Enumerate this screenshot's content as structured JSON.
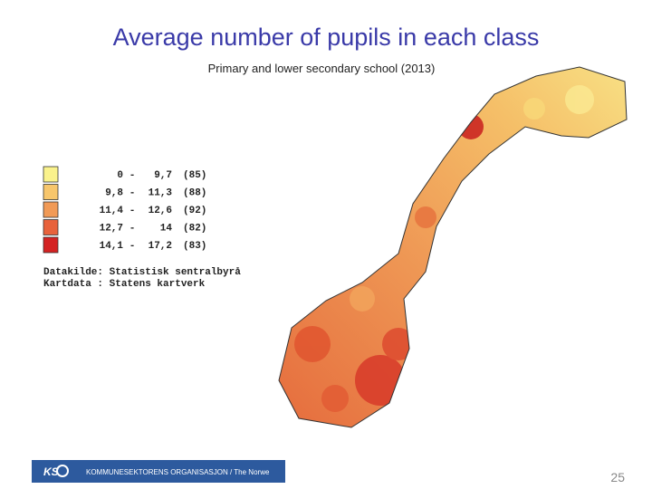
{
  "header": {
    "title": "Average number of pupils in each class",
    "subtitle": "Primary and lower secondary school (2013)"
  },
  "legend": {
    "items": [
      {
        "from": "0",
        "to": "9,7",
        "count": "(85)",
        "color": "#faf28c"
      },
      {
        "from": "9,8",
        "to": "11,3",
        "count": "(88)",
        "color": "#f7c66c"
      },
      {
        "from": "11,4",
        "to": "12,6",
        "count": "(92)",
        "color": "#f19a56"
      },
      {
        "from": "12,7",
        "to": "14",
        "count": "(82)",
        "color": "#e8623c"
      },
      {
        "from": "14,1",
        "to": "17,2",
        "count": "(83)",
        "color": "#d42222"
      }
    ],
    "sources": [
      "Datakilde: Statistisk sentralbyrå",
      "Kartdata : Statens kartverk"
    ]
  },
  "footer": {
    "logo": "KS",
    "organisation": "KOMMUNESEKTORENS ORGANISASJON / The Norwe",
    "page_number": "25"
  }
}
